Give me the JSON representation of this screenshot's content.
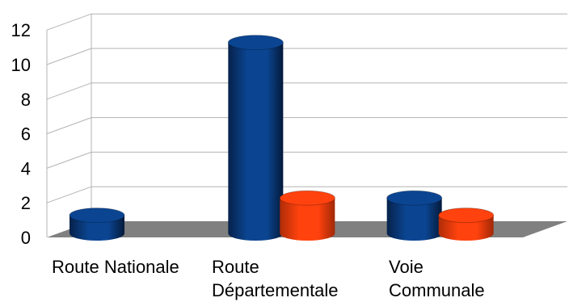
{
  "chart_data": {
    "type": "bar",
    "title": "",
    "xlabel": "",
    "ylabel": "",
    "categories": [
      [
        "Route Nationale"
      ],
      [
        "Route",
        "Départementale"
      ],
      [
        "Voie",
        "Communale"
      ]
    ],
    "series": [
      {
        "values": [
          1,
          11,
          2
        ],
        "color": "#0b4592"
      },
      {
        "values": [
          0,
          2,
          1
        ],
        "color": "#ff420e"
      }
    ],
    "yticks": [
      "0",
      "2",
      "4",
      "6",
      "8",
      "10",
      "12"
    ],
    "ylim": [
      0,
      12
    ],
    "grid": true,
    "floor_color": "#808080",
    "legend": "none"
  }
}
